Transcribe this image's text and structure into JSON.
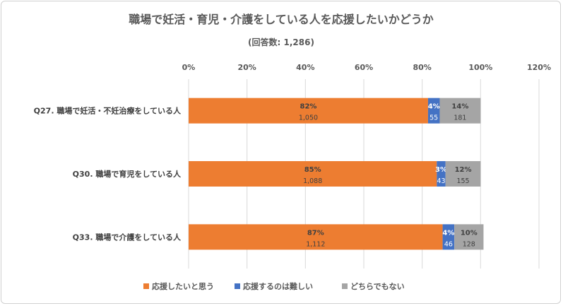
{
  "chart_data": {
    "type": "bar",
    "orientation": "horizontal",
    "stacked": true,
    "title": "職場で妊活・育児・介護をしている人を応援したいかどうか",
    "subtitle": "(回答数: 1,286)",
    "xlim": [
      0,
      120
    ],
    "x_ticks": [
      "0%",
      "20%",
      "40%",
      "60%",
      "80%",
      "100%",
      "120%"
    ],
    "grid": true,
    "legend_position": "bottom",
    "categories": [
      "Q27. 職場で妊活・不妊治療をしている人",
      "Q30. 職場で育児をしている人",
      "Q33. 職場で介護をしている人"
    ],
    "series": [
      {
        "name": "応援したいと思う",
        "color": "#ED7D31",
        "values": [
          82,
          85,
          87
        ],
        "labels": [
          "82%",
          "85%",
          "87%"
        ],
        "counts": [
          "1,050",
          "1,088",
          "1,112"
        ]
      },
      {
        "name": "応援するのは難しい",
        "color": "#4472C4",
        "values": [
          4,
          3,
          4
        ],
        "labels": [
          "4%",
          "3%",
          "4%"
        ],
        "counts": [
          "55",
          "43",
          "46"
        ]
      },
      {
        "name": "どちらでもない",
        "color": "#A5A5A5",
        "values": [
          14,
          12,
          10
        ],
        "labels": [
          "14%",
          "12%",
          "10%"
        ],
        "counts": [
          "181",
          "155",
          "128"
        ]
      }
    ]
  }
}
